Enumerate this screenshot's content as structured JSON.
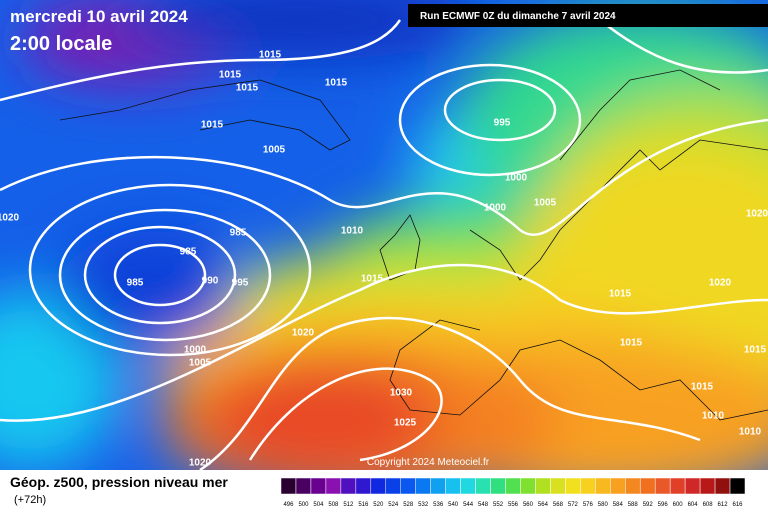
{
  "header": {
    "date": "mercredi 10 avril 2024",
    "time": "2:00 locale",
    "run": "Run ECMWF 0Z du dimanche 7 avril 2024",
    "copyright": "Copyright 2024 Meteociel.fr"
  },
  "legend": {
    "title": "Géop. z500, pression niveau mer",
    "lead": "(+72h)",
    "scale": [
      496,
      500,
      504,
      508,
      512,
      516,
      520,
      524,
      528,
      532,
      536,
      540,
      544,
      548,
      552,
      556,
      560,
      564,
      568,
      572,
      576,
      580,
      584,
      588,
      592,
      596,
      600,
      604,
      608,
      612,
      616
    ]
  },
  "isobar_labels": [
    1015,
    1015,
    1015,
    1015,
    1015,
    1005,
    995,
    1000,
    1000,
    1005,
    1020,
    1020,
    985,
    985,
    985,
    990,
    995,
    1010,
    1015,
    1015,
    1020,
    1020,
    1015,
    1015,
    1000,
    1005,
    1015,
    1030,
    1025,
    1010,
    1010,
    1020
  ]
}
